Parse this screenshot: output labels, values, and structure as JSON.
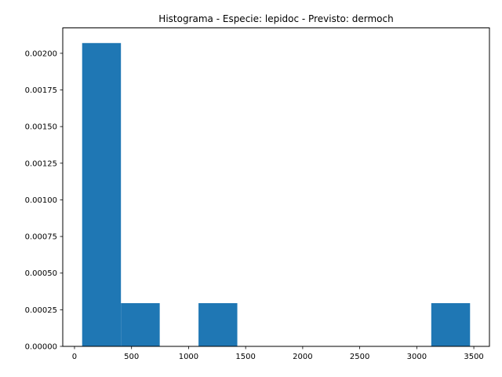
{
  "chart_data": {
    "type": "bar",
    "title": "Histograma - Especie: lepidoc - Previsto: dermoch",
    "xlabel": "",
    "ylabel": "",
    "bins": [
      {
        "x0": 67,
        "x1": 407,
        "density": 0.00207
      },
      {
        "x0": 407,
        "x1": 747,
        "density": 0.000295
      },
      {
        "x0": 747,
        "x1": 1087,
        "density": 0
      },
      {
        "x0": 1087,
        "x1": 1427,
        "density": 0.000295
      },
      {
        "x0": 1427,
        "x1": 1767,
        "density": 0
      },
      {
        "x0": 1767,
        "x1": 2107,
        "density": 0
      },
      {
        "x0": 2107,
        "x1": 2447,
        "density": 0
      },
      {
        "x0": 2447,
        "x1": 2787,
        "density": 0
      },
      {
        "x0": 2787,
        "x1": 3127,
        "density": 0
      },
      {
        "x0": 3127,
        "x1": 3467,
        "density": 0.000295
      }
    ],
    "xlim": [
      -103,
      3637
    ],
    "ylim": [
      0,
      0.0021735
    ],
    "xticks": [
      0,
      500,
      1000,
      1500,
      2000,
      2500,
      3000,
      3500
    ],
    "xtick_labels": [
      "0",
      "500",
      "1000",
      "1500",
      "2000",
      "2500",
      "3000",
      "3500"
    ],
    "yticks": [
      0,
      0.00025,
      0.0005,
      0.00075,
      0.001,
      0.00125,
      0.0015,
      0.00175,
      0.002
    ],
    "ytick_labels": [
      "0.00000",
      "0.00025",
      "0.00050",
      "0.00075",
      "0.00100",
      "0.00125",
      "0.00150",
      "0.00175",
      "0.00200"
    ],
    "color": "#1f77b4",
    "grid": false
  }
}
